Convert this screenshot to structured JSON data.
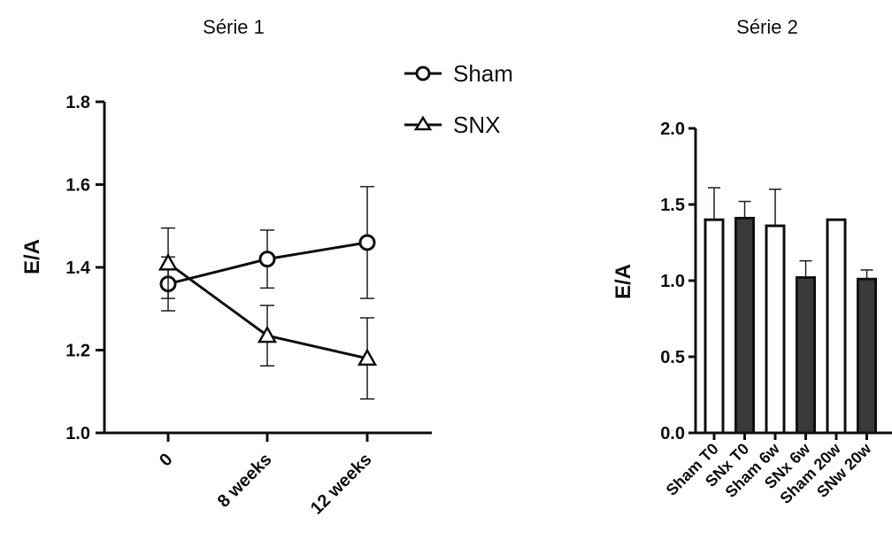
{
  "chart_data": [
    {
      "type": "line",
      "title": "Série 1",
      "xlabel": "",
      "ylabel": "E/A",
      "categories": [
        "0",
        "8 weeks",
        "12 weeks"
      ],
      "ylim": [
        1.0,
        1.8
      ],
      "yticks": [
        "1.0",
        "1.2",
        "1.4",
        "1.6",
        "1.8"
      ],
      "legend_position": "top-right",
      "series": [
        {
          "name": "Sham",
          "marker": "circle",
          "values": [
            1.36,
            1.42,
            1.46
          ],
          "errors": [
            0.065,
            0.07,
            0.135
          ]
        },
        {
          "name": "SNX",
          "marker": "triangle",
          "values": [
            1.41,
            1.235,
            1.18
          ],
          "errors": [
            0.085,
            0.073,
            0.098
          ]
        }
      ]
    },
    {
      "type": "bar",
      "title": "Série 2",
      "xlabel": "",
      "ylabel": "E/A",
      "categories": [
        "Sham T0",
        "SNx T0",
        "Sham 6w",
        "SNx 6w",
        "Sham 20w",
        "SNw 20w"
      ],
      "ylim": [
        0.0,
        2.0
      ],
      "yticks": [
        "0.0",
        "0.5",
        "1.0",
        "1.5",
        "2.0"
      ],
      "values": [
        1.4,
        1.41,
        1.36,
        1.02,
        1.4,
        1.01
      ],
      "errors": [
        0.21,
        0.11,
        0.24,
        0.11,
        0.0,
        0.06
      ],
      "fills": [
        "#ffffff",
        "#3a3a3a",
        "#ffffff",
        "#3a3a3a",
        "#ffffff",
        "#3a3a3a"
      ]
    }
  ]
}
